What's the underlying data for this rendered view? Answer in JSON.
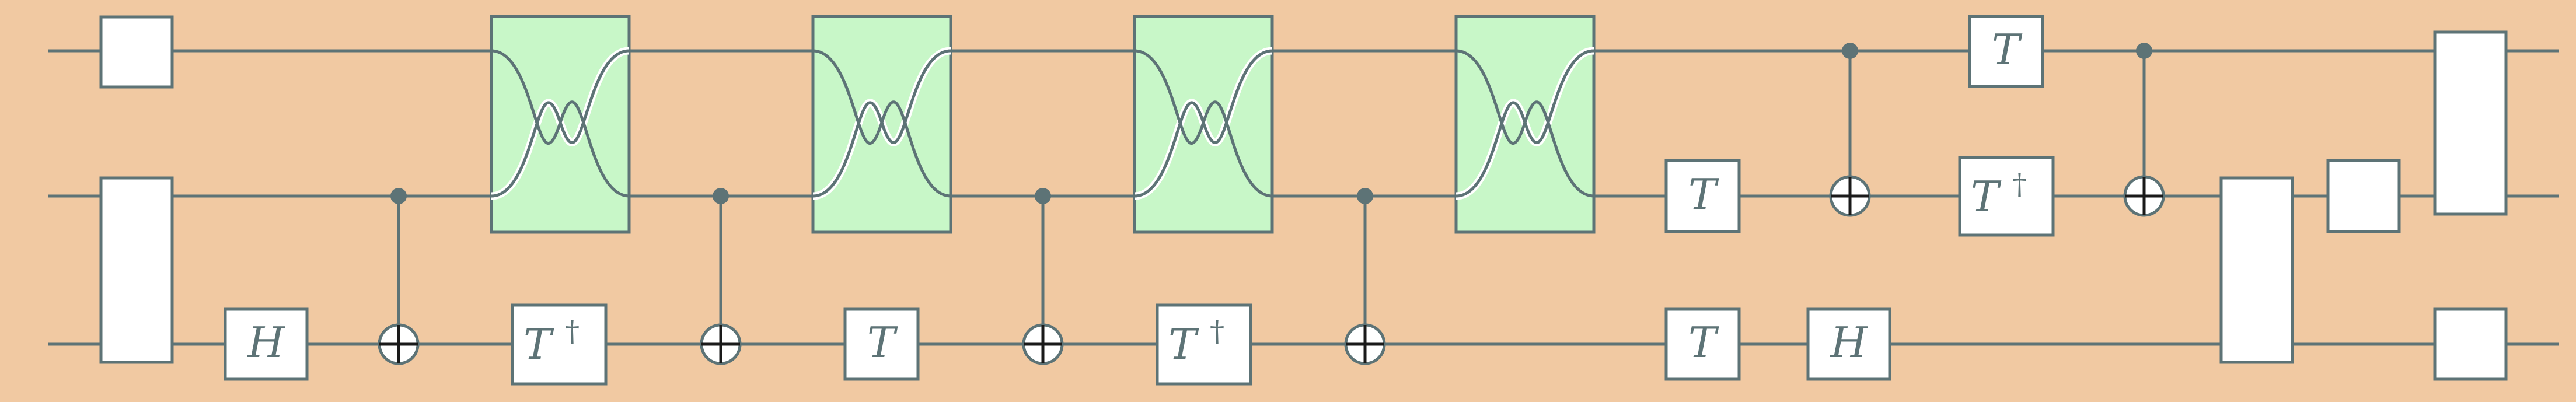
{
  "diagram": {
    "type": "quantum-circuit",
    "qubit_count": 3,
    "colors": {
      "background": "#f1c9a2",
      "line": "#5d7376",
      "gate_fill": "#ffffff",
      "swap_fill": "#c8f7c8",
      "swap_highlight": "#ffffff"
    }
  },
  "gates": {
    "h_bottom_1": {
      "symbol": "H"
    },
    "tdg_bottom_1": {
      "symbol": "T",
      "dagger": "†"
    },
    "t_bottom_1": {
      "symbol": "T"
    },
    "tdg_bottom_2": {
      "symbol": "T",
      "dagger": "†"
    },
    "t_middle": {
      "symbol": "T"
    },
    "t_bottom_2": {
      "symbol": "T"
    },
    "h_bottom_2": {
      "symbol": "H"
    },
    "t_top": {
      "symbol": "T"
    },
    "tdg_middle": {
      "symbol": "T",
      "dagger": "†"
    }
  }
}
